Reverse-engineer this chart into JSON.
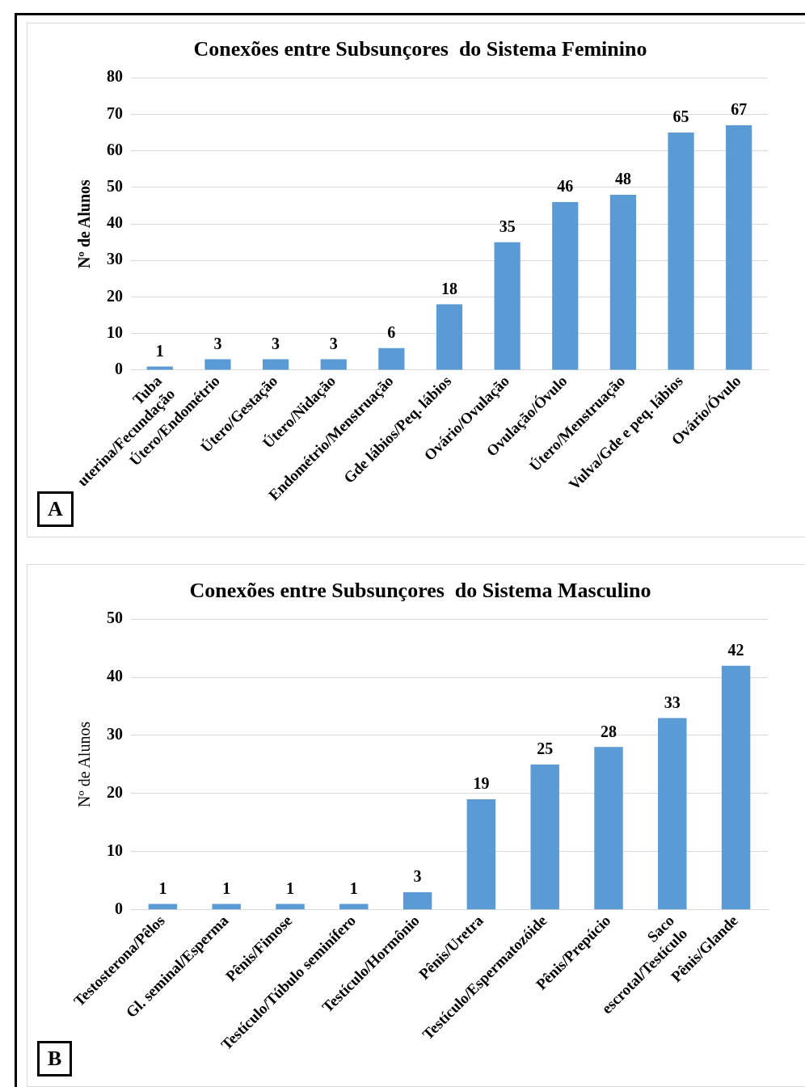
{
  "chart_data": [
    {
      "type": "bar",
      "title": "Conexões entre Subsunçores  do Sistema Feminino",
      "ylabel": "Nº de Alunos",
      "categories": [
        "Tuba uterina/Fecundação",
        "Útero/Endométrio",
        "Útero/Gestação",
        "Útero/Nidação",
        "Endométrio/Menstruação",
        "Gde lábios/Peq. lábios",
        "Ovário/Ovulação",
        "Ovulação/Óvulo",
        "Útero/Menstruação",
        "Vulva/Gde e peq. lábios",
        "Ovário/Óvulo"
      ],
      "values": [
        1,
        3,
        3,
        3,
        6,
        18,
        35,
        46,
        48,
        65,
        67
      ],
      "color": "#5b9bd5",
      "ylim": [
        0,
        80
      ],
      "yticks": [
        0,
        10,
        20,
        30,
        40,
        50,
        60,
        70,
        80
      ],
      "grid": "y",
      "data_labels": true,
      "legend": false,
      "annotations": [
        "A"
      ]
    },
    {
      "type": "bar",
      "title": "Conexões entre Subsunçores  do Sistema Masculino",
      "ylabel": "Nº de Alunos",
      "categories": [
        "Testosterona/Pêlos",
        "Gl. seminal/Esperma",
        "Pênis/Fimose",
        "Testículo/Túbulo seminífero",
        "Testículo/Hormônio",
        "Pênis/Uretra",
        "Testículo/Espermatozóide",
        "Pênis/Prepúcio",
        "Saco escrotal/Testículo",
        "Pênis/Glande"
      ],
      "values": [
        1,
        1,
        1,
        1,
        3,
        19,
        25,
        28,
        33,
        42
      ],
      "color": "#5b9bd5",
      "ylim": [
        0,
        50
      ],
      "yticks": [
        0,
        10,
        20,
        30,
        40,
        50
      ],
      "grid": "y",
      "data_labels": true,
      "legend": false,
      "annotations": [
        "B"
      ]
    }
  ]
}
